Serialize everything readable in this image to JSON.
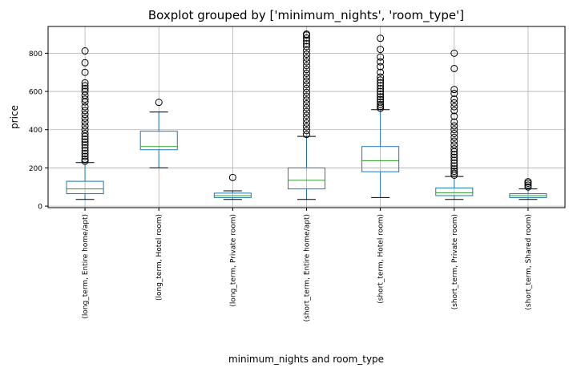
{
  "chart_data": {
    "type": "box",
    "title": "Boxplot grouped by ['minimum_nights', 'room_type']",
    "xlabel": "minimum_nights and room_type",
    "ylabel": "price",
    "ylim": [
      -8,
      940
    ],
    "yticks": [
      0,
      200,
      400,
      600,
      800
    ],
    "grid": true,
    "categories": [
      "(long_term, Entire home/apt)",
      "(long_term, Hotel room)",
      "(long_term, Private room)",
      "(short_term, Entire home/apt)",
      "(short_term, Hotel room)",
      "(short_term, Private room)",
      "(short_term, Shared room)"
    ],
    "boxes": [
      {
        "whisker_low": 35,
        "q1": 65,
        "median": 90,
        "q3": 130,
        "whisker_high": 228,
        "outliers": [
          235,
          245,
          260,
          275,
          290,
          305,
          320,
          335,
          350,
          365,
          380,
          400,
          420,
          440,
          460,
          480,
          500,
          520,
          545,
          560,
          580,
          600,
          615,
          630,
          645,
          700,
          750,
          812
        ]
      },
      {
        "whisker_low": 200,
        "q1": 295,
        "median": 312,
        "q3": 392,
        "whisker_high": 492,
        "outliers": [
          543
        ]
      },
      {
        "whisker_low": 35,
        "q1": 45,
        "median": 55,
        "q3": 68,
        "whisker_high": 80,
        "outliers": [
          150
        ]
      },
      {
        "whisker_low": 35,
        "q1": 90,
        "median": 135,
        "q3": 200,
        "whisker_high": 365,
        "outliers": [
          375,
          395,
          415,
          435,
          455,
          475,
          495,
          515,
          535,
          555,
          575,
          595,
          615,
          635,
          655,
          675,
          695,
          715,
          735,
          755,
          775,
          795,
          815,
          835,
          850,
          865,
          880,
          895,
          900
        ]
      },
      {
        "whisker_low": 45,
        "q1": 180,
        "median": 238,
        "q3": 312,
        "whisker_high": 505,
        "outliers": [
          512,
          522,
          532,
          545,
          558,
          572,
          586,
          600,
          615,
          630,
          645,
          660,
          675,
          700,
          730,
          755,
          780,
          820,
          878
        ]
      },
      {
        "whisker_low": 35,
        "q1": 55,
        "median": 70,
        "q3": 95,
        "whisker_high": 155,
        "outliers": [
          162,
          172,
          182,
          195,
          210,
          225,
          240,
          255,
          270,
          285,
          300,
          320,
          340,
          360,
          380,
          400,
          420,
          440,
          470,
          500,
          520,
          540,
          560,
          590,
          610,
          720,
          800
        ]
      },
      {
        "whisker_low": 35,
        "q1": 45,
        "median": 55,
        "q3": 65,
        "whisker_high": 90,
        "outliers": [
          100,
          110,
          120,
          128
        ]
      }
    ],
    "colors": {
      "box": "#1f77b4",
      "median": "#2ca02c",
      "grid": "#b0b0b0",
      "axes": "#000000"
    }
  }
}
